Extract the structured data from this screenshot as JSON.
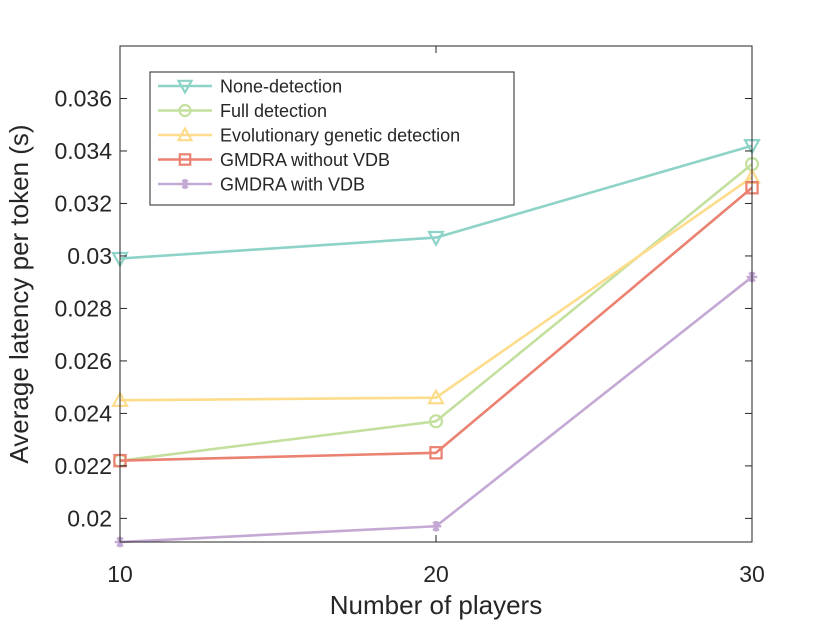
{
  "chart_data": {
    "type": "line",
    "xlabel": "Number of players",
    "ylabel": "Average latency per token (s)",
    "x": [
      10,
      20,
      30
    ],
    "xlim": [
      10,
      30
    ],
    "ylim": [
      0.0191,
      0.038
    ],
    "xticks": [
      10,
      20,
      30
    ],
    "xtick_labels": [
      "10",
      "20",
      "30"
    ],
    "yticks": [
      0.02,
      0.022,
      0.024,
      0.026,
      0.028,
      0.03,
      0.032,
      0.034,
      0.036
    ],
    "ytick_labels": [
      "0.02",
      "0.022",
      "0.024",
      "0.026",
      "0.028",
      "0.03",
      "0.032",
      "0.034",
      "0.036"
    ],
    "grid": false,
    "legend_position": "top-left",
    "series": [
      {
        "name": "None-detection",
        "values": [
          0.0299,
          0.0307,
          0.0342
        ],
        "color": "#8dd3c7",
        "marker": "triangle-down"
      },
      {
        "name": "Full detection",
        "values": [
          0.0222,
          0.0237,
          0.0335
        ],
        "color": "#c4e09e",
        "marker": "circle"
      },
      {
        "name": "Evolutionary genetic detection",
        "values": [
          0.0245,
          0.0246,
          0.033
        ],
        "color": "#fddc8c",
        "marker": "triangle-up"
      },
      {
        "name": "GMDRA without VDB",
        "values": [
          0.0222,
          0.0225,
          0.0326
        ],
        "color": "#eb8170",
        "marker": "square"
      },
      {
        "name": "GMDRA with VDB",
        "values": [
          0.0191,
          0.0197,
          0.0292
        ],
        "color": "#c4a9d4",
        "marker": "asterisk"
      }
    ]
  }
}
